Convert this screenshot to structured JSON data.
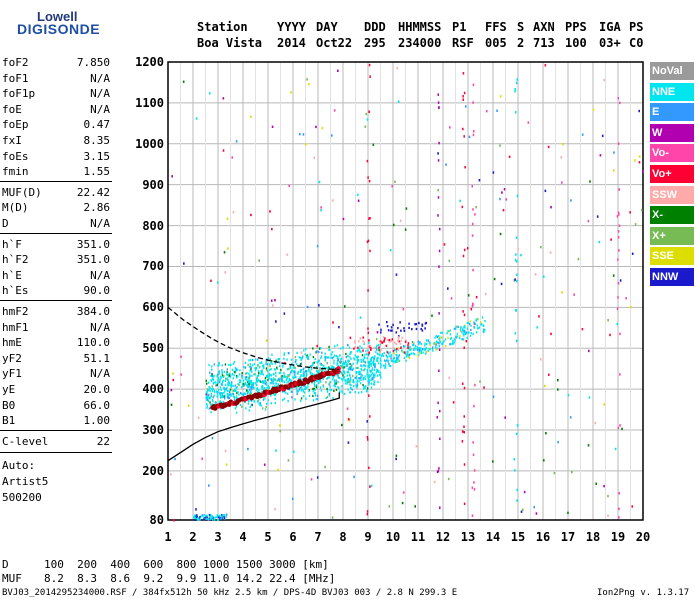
{
  "logo": {
    "line1": "Lowell",
    "line2": "DIGISONDE"
  },
  "header": {
    "labels": [
      "Station",
      "YYYY",
      "DAY",
      "DDD",
      "HHMMSS",
      "P1",
      "FFS",
      "S",
      "AXN",
      "PPS",
      "IGA",
      "PS"
    ],
    "values": [
      "Boa Vista",
      "2014",
      "Oct22",
      "295",
      "234000",
      "RSF",
      "005",
      "2",
      "713",
      "100",
      "03+",
      "C0"
    ]
  },
  "params_group1": [
    {
      "k": "foF2",
      "v": "7.850"
    },
    {
      "k": "foF1",
      "v": "N/A"
    },
    {
      "k": "foF1p",
      "v": "N/A"
    },
    {
      "k": "foE",
      "v": "N/A"
    },
    {
      "k": "foEp",
      "v": "0.47"
    },
    {
      "k": "fxI",
      "v": "8.35"
    },
    {
      "k": "foEs",
      "v": "3.15"
    },
    {
      "k": "fmin",
      "v": "1.55"
    }
  ],
  "params_group2": [
    {
      "k": "MUF(D)",
      "v": "22.42"
    },
    {
      "k": "M(D)",
      "v": "2.86"
    },
    {
      "k": "D",
      "v": "N/A"
    }
  ],
  "params_group3": [
    {
      "k": "h`F",
      "v": "351.0"
    },
    {
      "k": "h`F2",
      "v": "351.0"
    },
    {
      "k": "h`E",
      "v": "N/A"
    },
    {
      "k": "h`Es",
      "v": "90.0"
    }
  ],
  "params_group4": [
    {
      "k": "hmF2",
      "v": "384.0"
    },
    {
      "k": "hmF1",
      "v": "N/A"
    },
    {
      "k": "hmE",
      "v": "110.0"
    },
    {
      "k": "yF2",
      "v": "51.1"
    },
    {
      "k": "yF1",
      "v": "N/A"
    },
    {
      "k": "yE",
      "v": "20.0"
    },
    {
      "k": "B0",
      "v": "66.0"
    },
    {
      "k": "B1",
      "v": "1.00"
    }
  ],
  "clevel": {
    "k": "C-level",
    "v": "22"
  },
  "autoscaling": [
    "Auto:",
    "Artist5",
    "500200"
  ],
  "legend": [
    {
      "label": "NoVal",
      "color": "#9a9a9a"
    },
    {
      "label": "NNE",
      "color": "#00e5ee"
    },
    {
      "label": "E",
      "color": "#3399ff"
    },
    {
      "label": "W",
      "color": "#b000b0"
    },
    {
      "label": "Vo-",
      "color": "#ff44aa"
    },
    {
      "label": "Vo+",
      "color": "#ff0033"
    },
    {
      "label": "SSW",
      "color": "#ffaaaa"
    },
    {
      "label": "X-",
      "color": "#008000"
    },
    {
      "label": "X+",
      "color": "#77bb55"
    },
    {
      "label": "SSE",
      "color": "#dddd00"
    },
    {
      "label": "NNW",
      "color": "#1a1acc"
    }
  ],
  "mufs": {
    "d_label": "D",
    "d_values": "100  200  400  600  800 1000 1500 3000 [km]",
    "muf_label": "MUF",
    "muf_values": "8.2  8.3  8.6  9.2  9.9 11.0 14.2 22.4 [MHz]"
  },
  "footer": {
    "left": "BVJ03_2014295234000.RSF / 384fx512h 50 kHz 2.5 km / DPS-4D BVJ03 003 / 2.8 N 299.3 E",
    "right": "Ion2Png v. 1.3.17"
  },
  "chart_data": {
    "type": "scatter",
    "title": "",
    "xlabel": "",
    "ylabel": "",
    "xlim": [
      1,
      20
    ],
    "ylim": [
      80,
      1200
    ],
    "x_ticks": [
      "1",
      "2",
      "3",
      "4",
      "5",
      "6",
      "7",
      "8",
      "9",
      "10",
      "11",
      "12",
      "13",
      "14",
      "15",
      "16",
      "17",
      "18",
      "19",
      "20"
    ],
    "y_ticks": [
      "80",
      "200",
      "300",
      "400",
      "500",
      "600",
      "700",
      "800",
      "900",
      "1000",
      "1100",
      "1200"
    ],
    "grid": true,
    "traces": [
      {
        "name": "o-trace",
        "color": "#8b0000",
        "x": [
          2.8,
          3.5,
          4.2,
          5.0,
          5.7,
          6.4,
          7.0,
          7.6,
          7.85
        ],
        "y": [
          355,
          365,
          378,
          392,
          405,
          418,
          430,
          440,
          448
        ]
      },
      {
        "name": "true-height-profile",
        "color": "#000000",
        "style": "solid",
        "x": [
          1.0,
          1.5,
          2.0,
          2.5,
          3.0,
          3.5,
          4.0,
          4.5,
          5.0,
          5.5,
          6.0,
          6.5,
          7.0,
          7.5,
          7.85,
          7.85
        ],
        "y": [
          225,
          245,
          265,
          282,
          296,
          306,
          315,
          324,
          332,
          340,
          348,
          356,
          364,
          372,
          378,
          392
        ]
      },
      {
        "name": "topside-extrapolation",
        "color": "#000000",
        "style": "dashed",
        "x": [
          1.0,
          1.6,
          2.2,
          2.8,
          3.4,
          4.0,
          4.6,
          5.2,
          5.8,
          6.4,
          7.0,
          7.5,
          7.85
        ],
        "y": [
          600,
          570,
          545,
          522,
          503,
          489,
          477,
          468,
          461,
          455,
          451,
          449,
          448
        ]
      },
      {
        "name": "F-region-echo-cloud",
        "color": "#00e5ee",
        "x_range": [
          2.5,
          9.5
        ],
        "y_range": [
          380,
          530
        ]
      },
      {
        "name": "oblique-echo-streak",
        "color": "#00e5ee",
        "x_range": [
          9.5,
          13.7
        ],
        "y_range": [
          455,
          580
        ]
      },
      {
        "name": "Es-echoes",
        "color": "#00e5ee",
        "x_range": [
          2.0,
          3.3
        ],
        "y_range": [
          82,
          95
        ]
      }
    ]
  }
}
